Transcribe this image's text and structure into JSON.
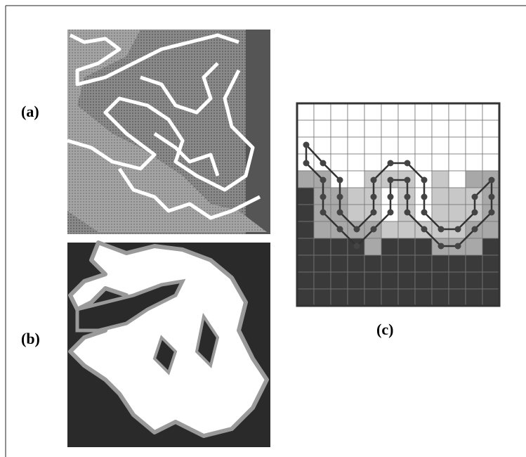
{
  "panels": {
    "a": {
      "label": "(a)"
    },
    "b": {
      "label": "(b)"
    },
    "c": {
      "label": "(c)"
    }
  }
}
